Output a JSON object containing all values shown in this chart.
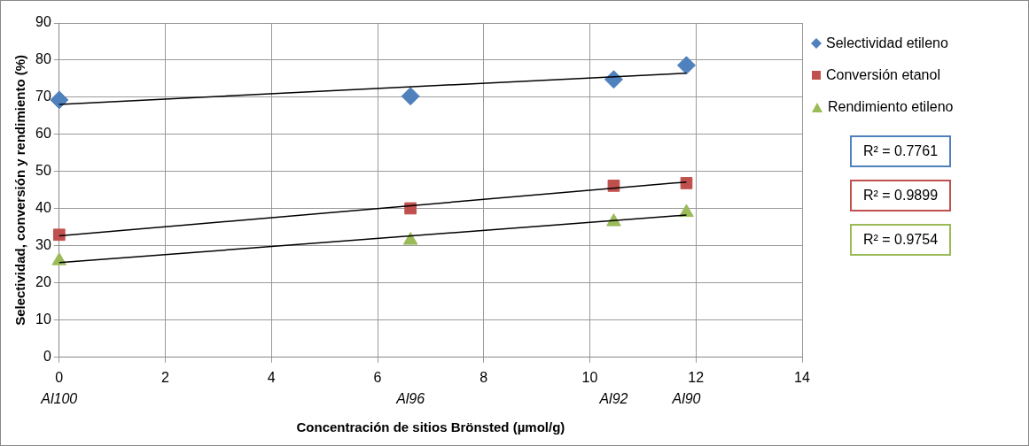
{
  "chart_data": {
    "type": "scatter",
    "xlabel": "Concentración de sitios Brönsted (µmol/g)",
    "ylabel": "Selectividad, conversión y rendimiento (%)",
    "xlim": [
      0,
      14
    ],
    "xticks": [
      0,
      2,
      4,
      6,
      8,
      10,
      12,
      14
    ],
    "ylim": [
      0,
      90
    ],
    "yticks": [
      0,
      10,
      20,
      30,
      40,
      50,
      60,
      70,
      80,
      90
    ],
    "grid": true,
    "legend": "right",
    "series": [
      {
        "name": "Selectividad etileno",
        "color": "#4f81bd",
        "marker": "diamond",
        "x": [
          0,
          6.62,
          10.45,
          11.82
        ],
        "values": [
          69.3,
          70.3,
          74.8,
          78.6
        ]
      },
      {
        "name": "Conversión etanol",
        "color": "#c0504d",
        "marker": "square",
        "x": [
          0,
          6.62,
          10.45,
          11.82
        ],
        "values": [
          33,
          40.1,
          46.2,
          46.9
        ]
      },
      {
        "name": "Rendimiento etileno",
        "color": "#9bbb59",
        "marker": "triangle",
        "x": [
          0,
          6.62,
          10.45,
          11.82
        ],
        "values": [
          26,
          31.5,
          36.5,
          39
        ]
      },
      {
        "type": "line",
        "color": "#000000",
        "marker": "none",
        "x": [
          0,
          11.82
        ],
        "values": [
          68.1,
          76.5
        ]
      },
      {
        "type": "line",
        "color": "#000000",
        "marker": "none",
        "x": [
          0,
          11.82
        ],
        "values": [
          32.7,
          47.2
        ]
      },
      {
        "type": "line",
        "color": "#000000",
        "marker": "none",
        "x": [
          0,
          11.82
        ],
        "values": [
          25.5,
          38.3
        ]
      }
    ],
    "annotations": [
      "Al100",
      "Al96",
      "Al92",
      "Al90",
      "R² = 0.7761",
      "R² = 0.9899",
      "R² = 0.9754"
    ]
  }
}
